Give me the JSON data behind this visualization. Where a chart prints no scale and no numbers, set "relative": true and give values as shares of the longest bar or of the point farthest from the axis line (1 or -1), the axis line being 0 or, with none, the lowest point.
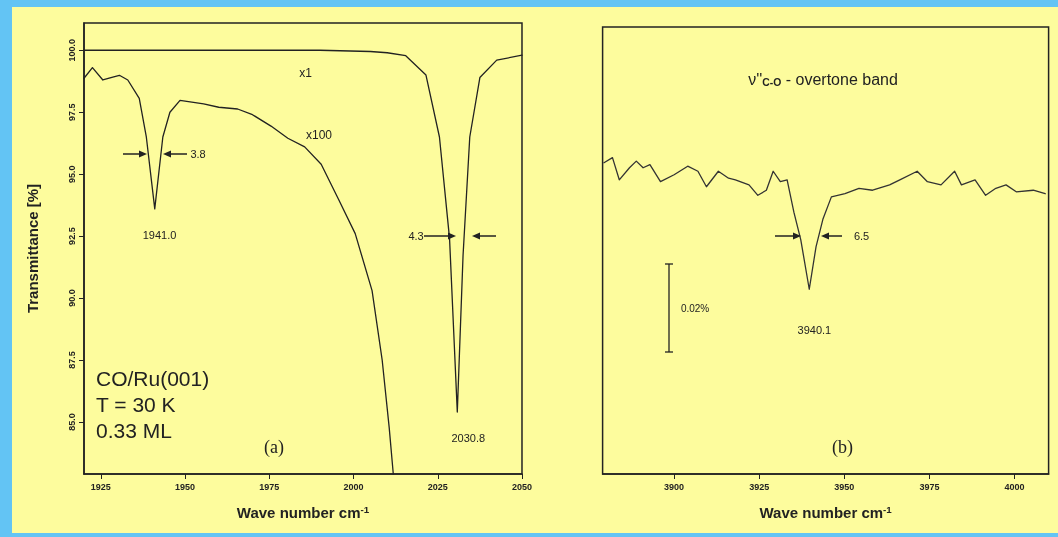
{
  "chart_data": [
    {
      "type": "line",
      "xlabel": "Wave number cm$^{-1}$",
      "ylabel": "Transmittance [%]",
      "xlim": [
        1920,
        2050
      ],
      "xticks": [
        1925,
        1950,
        1975,
        2000,
        2025,
        2050
      ],
      "ylim": [
        82.9,
        101.1
      ],
      "yticks": [
        {
          "value": 85,
          "label": "85.0"
        },
        {
          "value": 87.5,
          "label": "87.5"
        },
        {
          "value": 90,
          "label": "90.0"
        },
        {
          "value": 92.5,
          "label": "92.5"
        },
        {
          "value": 95,
          "label": "95.0"
        },
        {
          "value": 97.5,
          "label": "97.5"
        },
        {
          "value": 100,
          "label": "100.0"
        }
      ],
      "series": [
        {
          "color": "#222222",
          "x": [
            1920,
            1990,
            2005,
            2010,
            2015.5,
            2021.5,
            2025.5,
            2028.5,
            2030.8,
            2032.5,
            2034.5,
            2037.5,
            2042.5,
            2050
          ],
          "values": [
            100.0,
            100.0,
            99.95,
            99.9,
            99.78,
            99.0,
            96.5,
            92.4,
            85.4,
            91.7,
            96.5,
            98.9,
            99.6,
            99.8
          ]
        },
        {
          "color": "#222222",
          "x": [
            1920,
            1922.5,
            1925.6,
            1928,
            1930.5,
            1933,
            1936.4,
            1938.5,
            1941,
            1943.4,
            1945.5,
            1948.5,
            1955.5,
            1960,
            1965.6,
            1970,
            1975.5,
            1980.5,
            1985.5,
            1990.4,
            1995.5,
            2000.5,
            2005.5,
            2008.5,
            2010.6,
            2011.8
          ],
          "values": [
            98.87,
            99.3,
            98.8,
            98.9,
            98.99,
            98.8,
            98.06,
            96.5,
            93.6,
            96.5,
            97.5,
            97.98,
            97.84,
            97.7,
            97.63,
            97.4,
            96.94,
            96.45,
            96.1,
            95.4,
            94.0,
            92.6,
            90.3,
            87.5,
            84.75,
            82.9
          ]
        }
      ],
      "annotations": [
        "CO/Ru(001)\nT = 30 K\n0.33 ML",
        "(a)",
        "x1",
        "x100",
        "1941.0",
        "3.8",
        "2030.8",
        "4.3"
      ]
    },
    {
      "type": "line",
      "relative": true,
      "title": "ν''$_{C-O}$ - overtone band",
      "xlabel": "Wave number cm$^{-1}$",
      "xlim": [
        3879,
        4010
      ],
      "xticks": [
        3900,
        3925,
        3950,
        3975,
        4000
      ],
      "series": [
        {
          "color": "#333333",
          "x": [
            3879.4,
            3881.9,
            3883.9,
            3886.9,
            3888.9,
            3890.9,
            3892.9,
            3896,
            3900,
            3904,
            3907,
            3909.5,
            3913,
            3916,
            3918,
            3922,
            3924.6,
            3927.1,
            3929.1,
            3931.2,
            3933.2,
            3935.2,
            3937.2,
            3939.7,
            3941.7,
            3943.7,
            3946.2,
            3950.2,
            3954.3,
            3958.3,
            3963.3,
            3966.3,
            3971.4,
            3974.4,
            3978.4,
            3982.4,
            3984.4,
            3988.4,
            3991.5,
            3994.5,
            3997.5,
            4000.5,
            4005.5,
            4009
          ],
          "values": [
            0.984,
            1,
            0.93,
            0.968,
            0.989,
            0.968,
            0.978,
            0.924,
            0.946,
            0.973,
            0.957,
            0.908,
            0.957,
            0.935,
            0.93,
            0.914,
            0.881,
            0.897,
            0.957,
            0.924,
            0.93,
            0.827,
            0.741,
            0.584,
            0.719,
            0.805,
            0.876,
            0.886,
            0.903,
            0.897,
            0.914,
            0.93,
            0.957,
            0.924,
            0.914,
            0.957,
            0.914,
            0.93,
            0.881,
            0.903,
            0.914,
            0.892,
            0.897,
            0.886
          ]
        }
      ],
      "annotations": [
        "(b)",
        "3940.1",
        "6.5",
        "0.02%"
      ]
    }
  ]
}
